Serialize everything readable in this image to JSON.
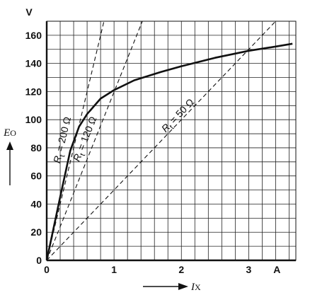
{
  "chart_data": {
    "type": "line",
    "title": "",
    "x_axis": {
      "quantity": "I",
      "subscript": "X",
      "unit": "A",
      "range": [
        0,
        3.7
      ],
      "ticks": [
        0,
        1,
        2,
        3
      ],
      "tick_labels": [
        "0",
        "1",
        "2",
        "3"
      ],
      "minor_step": 0.2
    },
    "y_axis": {
      "quantity": "E",
      "subscript": "O",
      "unit": "V",
      "range": [
        0,
        170
      ],
      "ticks": [
        0,
        20,
        40,
        60,
        80,
        100,
        120,
        140,
        160
      ],
      "tick_labels": [
        "0",
        "20",
        "40",
        "60",
        "80",
        "100",
        "120",
        "140",
        "160"
      ],
      "minor_step": 10
    },
    "grid": true,
    "series": [
      {
        "style": "solid",
        "points": [
          [
            0,
            0
          ],
          [
            0.2,
            45
          ],
          [
            0.35,
            78
          ],
          [
            0.48,
            95
          ],
          [
            0.6,
            104
          ],
          [
            0.8,
            115
          ],
          [
            1.0,
            121
          ],
          [
            1.3,
            128
          ],
          [
            1.7,
            134
          ],
          [
            2.0,
            138
          ],
          [
            2.5,
            144
          ],
          [
            3.0,
            149
          ],
          [
            3.4,
            152
          ],
          [
            3.65,
            154
          ]
        ]
      },
      {
        "style": "dashed",
        "label_prefix": "R",
        "label_subscript": "t",
        "label_suffix": " = 200 Ω",
        "resistance": 200,
        "points": [
          [
            0,
            0
          ],
          [
            0.85,
            170
          ]
        ]
      },
      {
        "style": "dashed",
        "label_prefix": "R",
        "label_subscript": "t",
        "label_suffix": " = 120 Ω",
        "resistance": 120,
        "points": [
          [
            0,
            0
          ],
          [
            1.42,
            170
          ]
        ]
      },
      {
        "style": "dashed",
        "label_prefix": "R",
        "label_subscript": "t",
        "label_suffix": " = 50 Ω",
        "resistance": 50,
        "points": [
          [
            0,
            0
          ],
          [
            3.4,
            170
          ]
        ]
      }
    ]
  }
}
